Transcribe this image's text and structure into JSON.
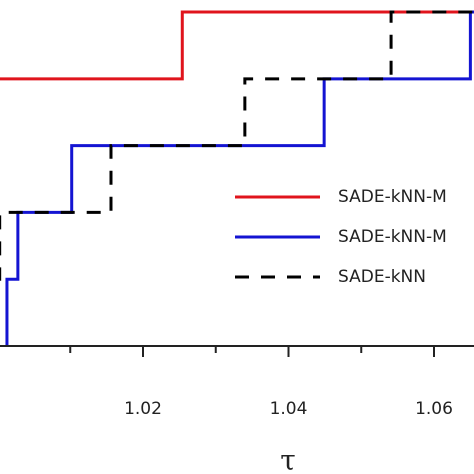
{
  "chart_data": {
    "type": "step",
    "xlabel": "τ",
    "xlim": [
      1.0,
      1.07
    ],
    "ylim": [
      0,
      1.036
    ],
    "xticks": [
      1.02,
      1.04,
      1.06
    ],
    "xminorticks": [
      1.01,
      1.03,
      1.05
    ],
    "series": [
      {
        "name": "SADE-kNN-M",
        "color": "#e0141c",
        "dash": false,
        "x": [
          1.0,
          1.0254
        ],
        "values": [
          0.8,
          1.0
        ]
      },
      {
        "name": "SADE-kNN-M",
        "color": "#1414d2",
        "dash": false,
        "x": [
          1.0013,
          1.0013,
          1.0028,
          1.0102,
          1.0449,
          1.065
        ],
        "values": [
          0,
          0.2,
          0.4,
          0.6,
          0.8,
          1.0
        ]
      },
      {
        "name": "SADE-kNN",
        "color": "#000000",
        "dash": true,
        "x": [
          1.0,
          1.0003,
          1.0156,
          1.034,
          1.0541
        ],
        "values": [
          0.2,
          0.4,
          0.6,
          0.8,
          1.0
        ]
      }
    ]
  }
}
